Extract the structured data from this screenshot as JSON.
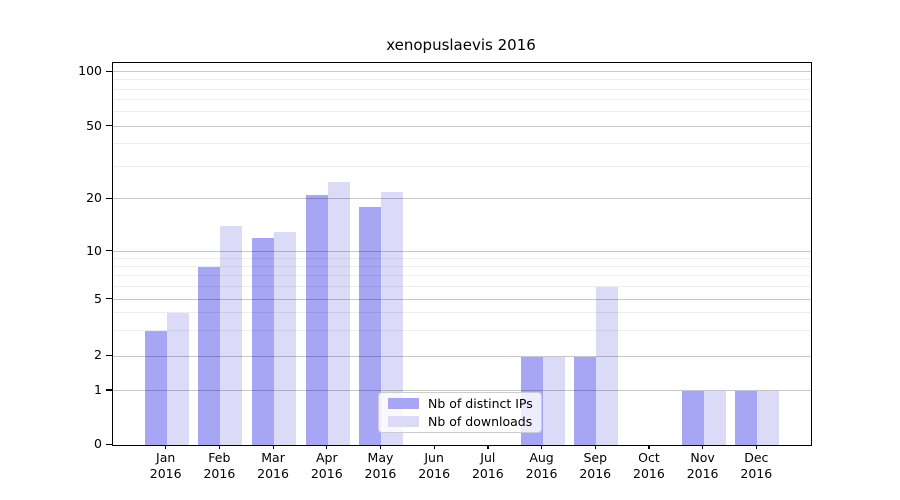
{
  "title": "xenopuslaevis 2016",
  "colors": {
    "bar_distinct_ips": "#a6a6f4",
    "bar_downloads": "#dbdbf8",
    "axis_spine": "#000000",
    "major_grid": "rgba(0,0,0,0.22)",
    "minor_grid": "rgba(0,0,0,0.07)",
    "legend_border": "#cccccc"
  },
  "legend": {
    "items": [
      {
        "label": "Nb of distinct IPs",
        "color": "#a6a6f4"
      },
      {
        "label": "Nb of downloads",
        "color": "#dbdbf8"
      }
    ]
  },
  "chart_data": {
    "type": "bar",
    "title": "xenopuslaevis 2016",
    "categories": [
      "Jan 2016",
      "Feb 2016",
      "Mar 2016",
      "Apr 2016",
      "May 2016",
      "Jun 2016",
      "Jul 2016",
      "Aug 2016",
      "Sep 2016",
      "Oct 2016",
      "Nov 2016",
      "Dec 2016"
    ],
    "x_tick_month": [
      "Jan",
      "Feb",
      "Mar",
      "Apr",
      "May",
      "Jun",
      "Jul",
      "Aug",
      "Sep",
      "Oct",
      "Nov",
      "Dec"
    ],
    "x_tick_year": "2016",
    "series": [
      {
        "name": "Nb of distinct IPs",
        "color": "#a6a6f4",
        "values": [
          3,
          8,
          12,
          21,
          18,
          0,
          0,
          2,
          2,
          0,
          1,
          1
        ]
      },
      {
        "name": "Nb of downloads",
        "color": "#dbdbf8",
        "values": [
          4,
          14,
          13,
          25,
          22,
          0,
          0,
          2,
          6,
          0,
          1,
          1
        ]
      }
    ],
    "xlabel": "",
    "ylabel": "",
    "y_axis": {
      "scale": "log-like",
      "major_ticks": [
        0,
        1,
        2,
        5,
        10,
        20,
        50,
        100
      ],
      "minor_gridlines": [
        3,
        4,
        6,
        7,
        8,
        9,
        30,
        40,
        60,
        70,
        80,
        90
      ],
      "ylim": [
        0,
        110
      ]
    },
    "grid": "horizontal, major and minor",
    "legend_position": "inside lower center-right"
  }
}
